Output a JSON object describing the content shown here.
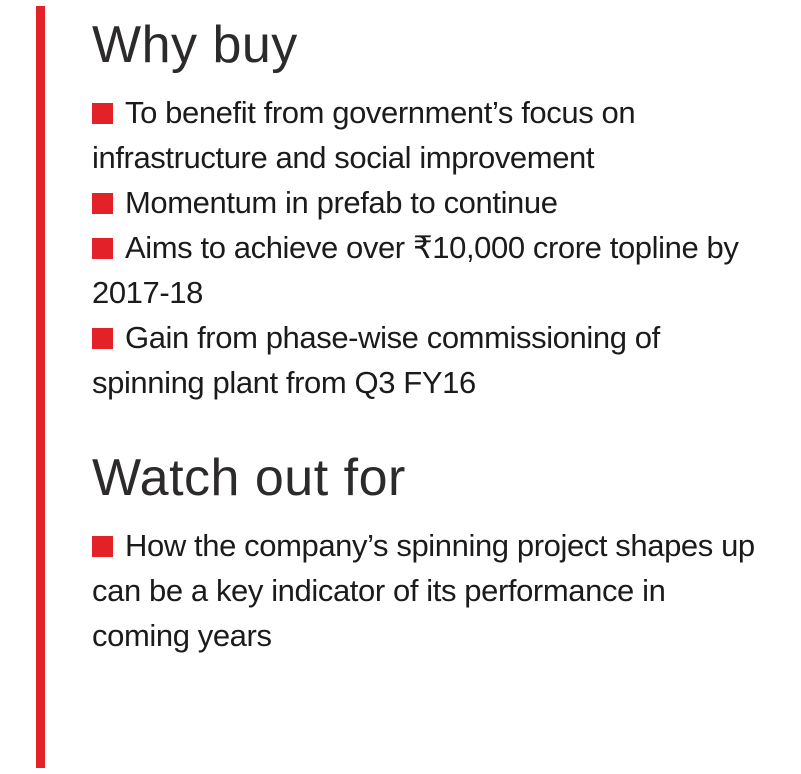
{
  "accent_color": "#e32128",
  "text_color": "#1c1a1b",
  "sections": [
    {
      "heading": "Why buy",
      "items": [
        "To benefit from government’s focus on infrastructure and social improvement",
        "Momentum in prefab to continue",
        "Aims to achieve over ₹10,000 crore topline by 2017-18",
        "Gain from phase-wise commissioning of spinning plant from Q3 FY16"
      ]
    },
    {
      "heading": "Watch out for",
      "items": [
        "How the company’s spinning project shapes up can be a key indicator of its performance in coming years"
      ]
    }
  ]
}
